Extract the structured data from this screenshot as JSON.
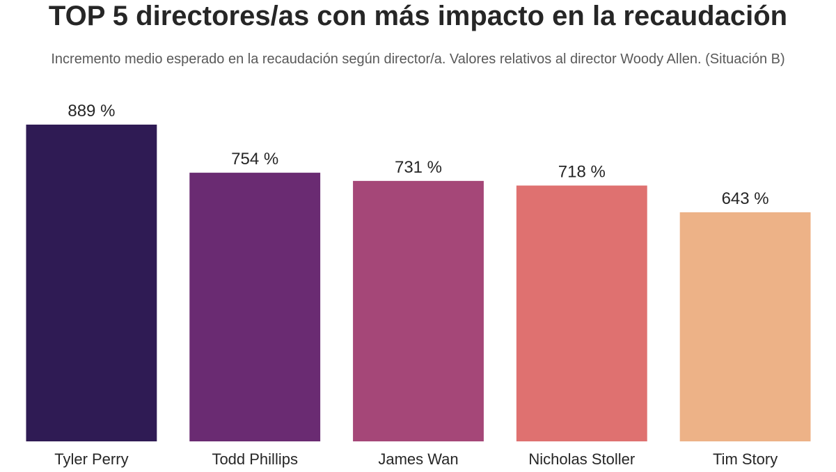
{
  "chart_data": {
    "type": "bar",
    "title": "TOP 5 directores/as con más impacto en la recaudación",
    "subtitle": "Incremento medio esperado en la recaudación según director/a. Valores relativos al director Woody Allen. (Situación B)",
    "xlabel": "",
    "ylabel": "",
    "categories": [
      "Tyler Perry",
      "Todd Phillips",
      "James Wan",
      "Nicholas Stoller",
      "Tim Story"
    ],
    "values": [
      889,
      754,
      731,
      718,
      643
    ],
    "data_labels": [
      "889 %",
      "754 %",
      "731 %",
      "718 %",
      "643 %"
    ],
    "colors": [
      "#2f1b54",
      "#6a2b72",
      "#a54778",
      "#df7170",
      "#edb287"
    ],
    "ylim": [
      0,
      889
    ],
    "grid": false,
    "y_axis_visible": false,
    "legend": "none"
  }
}
